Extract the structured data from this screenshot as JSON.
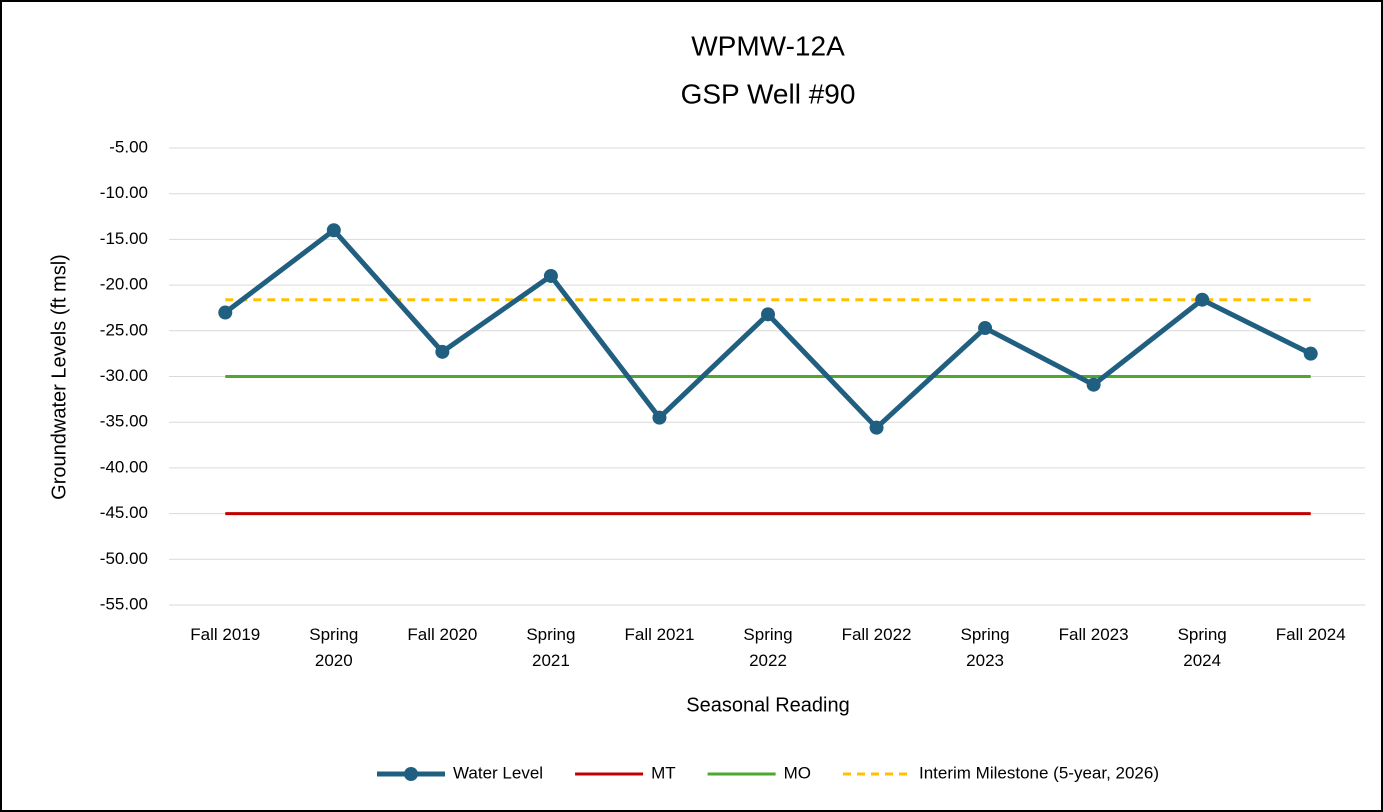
{
  "chart_data": {
    "type": "line",
    "title": [
      "WPMW-12A",
      "GSP Well #90"
    ],
    "x_label": "Seasonal Reading",
    "y_label": "Groundwater Levels (ft msl)",
    "categories": [
      "Fall 2019",
      "Spring 2020",
      "Fall 2020",
      "Spring 2021",
      "Fall 2021",
      "Spring 2022",
      "Fall 2022",
      "Spring 2023",
      "Fall 2023",
      "Spring 2024",
      "Fall 2024"
    ],
    "series": [
      {
        "name": "Water Level",
        "color": "#215f80",
        "marker": true,
        "dashed": false,
        "values": [
          -23.0,
          -14.0,
          -27.3,
          -19.0,
          -34.5,
          -23.2,
          -35.6,
          -24.7,
          -30.9,
          -21.6,
          -27.5
        ]
      },
      {
        "name": "MT",
        "color": "#c00000",
        "marker": false,
        "dashed": false,
        "values": [
          -45,
          -45,
          -45,
          -45,
          -45,
          -45,
          -45,
          -45,
          -45,
          -45,
          -45
        ]
      },
      {
        "name": "MO",
        "color": "#4ea72e",
        "marker": false,
        "dashed": false,
        "values": [
          -30,
          -30,
          -30,
          -30,
          -30,
          -30,
          -30,
          -30,
          -30,
          -30,
          -30
        ]
      },
      {
        "name": "Interim Milestone (5-year, 2026)",
        "color": "#ffc000",
        "marker": false,
        "dashed": true,
        "values": [
          -21.6,
          -21.6,
          -21.6,
          -21.6,
          -21.6,
          -21.6,
          -21.6,
          -21.6,
          -21.6,
          -21.6,
          -21.6
        ]
      }
    ],
    "ylim": [
      -55,
      -5
    ],
    "yticks": [
      {
        "value": -55,
        "label": "-55.00"
      },
      {
        "value": -50,
        "label": "-50.00"
      },
      {
        "value": -45,
        "label": "-45.00"
      },
      {
        "value": -40,
        "label": "-40.00"
      },
      {
        "value": -35,
        "label": "-35.00"
      },
      {
        "value": -30,
        "label": "-30.00"
      },
      {
        "value": -25,
        "label": "-25.00"
      },
      {
        "value": -20,
        "label": "-20.00"
      },
      {
        "value": -15,
        "label": "-15.00"
      },
      {
        "value": -10,
        "label": "-10.00"
      },
      {
        "value": -5,
        "label": "-5.00"
      }
    ],
    "grid": true,
    "legend": "bottom"
  }
}
